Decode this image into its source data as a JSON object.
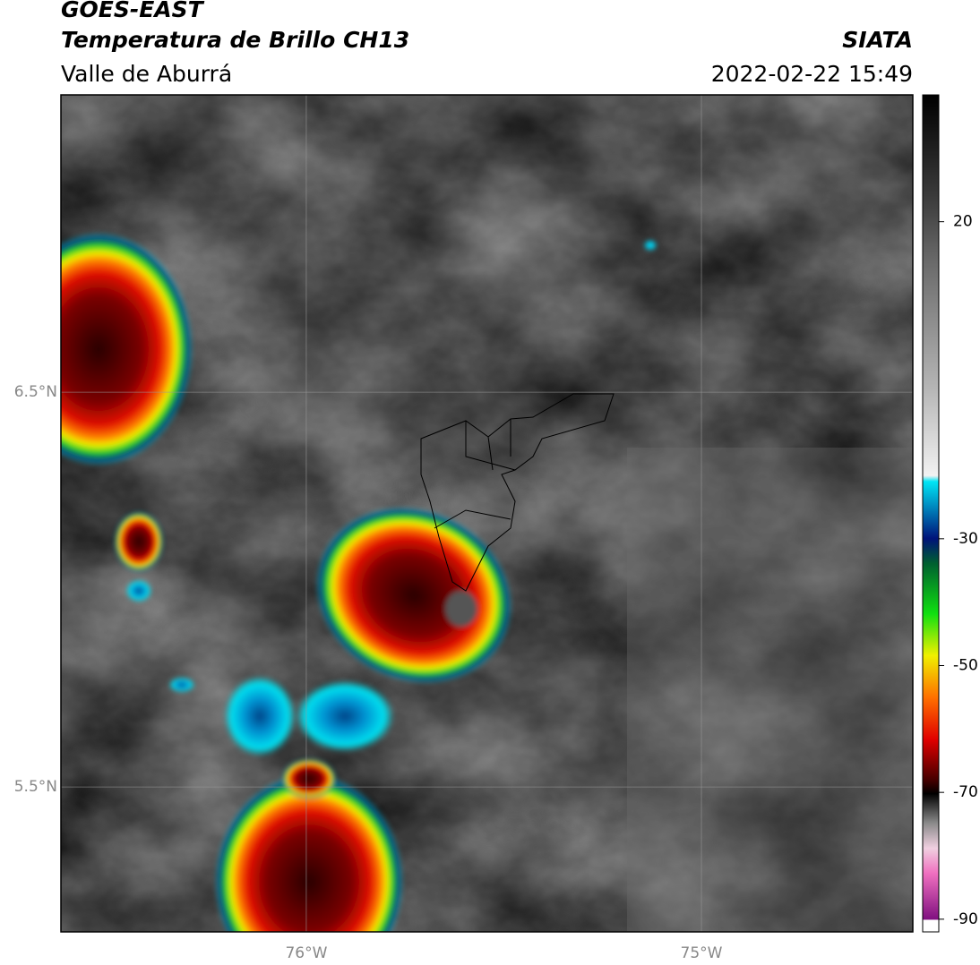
{
  "header": {
    "title": "GOES-EAST",
    "subtitle": "Temperatura de Brillo CH13",
    "region": "Valle de Aburrá",
    "source": "SIATA",
    "timestamp": "2022-02-22 15:49"
  },
  "map": {
    "latlim": [
      5.133,
      7.253
    ],
    "lonlim": [
      -76.621,
      -74.465
    ],
    "lat_ticks": [
      {
        "value": 6.5,
        "label": "6.5°N"
      },
      {
        "value": 5.5,
        "label": "5.5°N"
      }
    ],
    "lon_ticks": [
      {
        "value": -76,
        "label": "76°W"
      },
      {
        "value": -75,
        "label": "75°W"
      }
    ],
    "grid": true
  },
  "colorbar": {
    "lim": [
      -92,
      40
    ],
    "ticks": [
      20,
      -30,
      -50,
      -70,
      -90
    ]
  }
}
